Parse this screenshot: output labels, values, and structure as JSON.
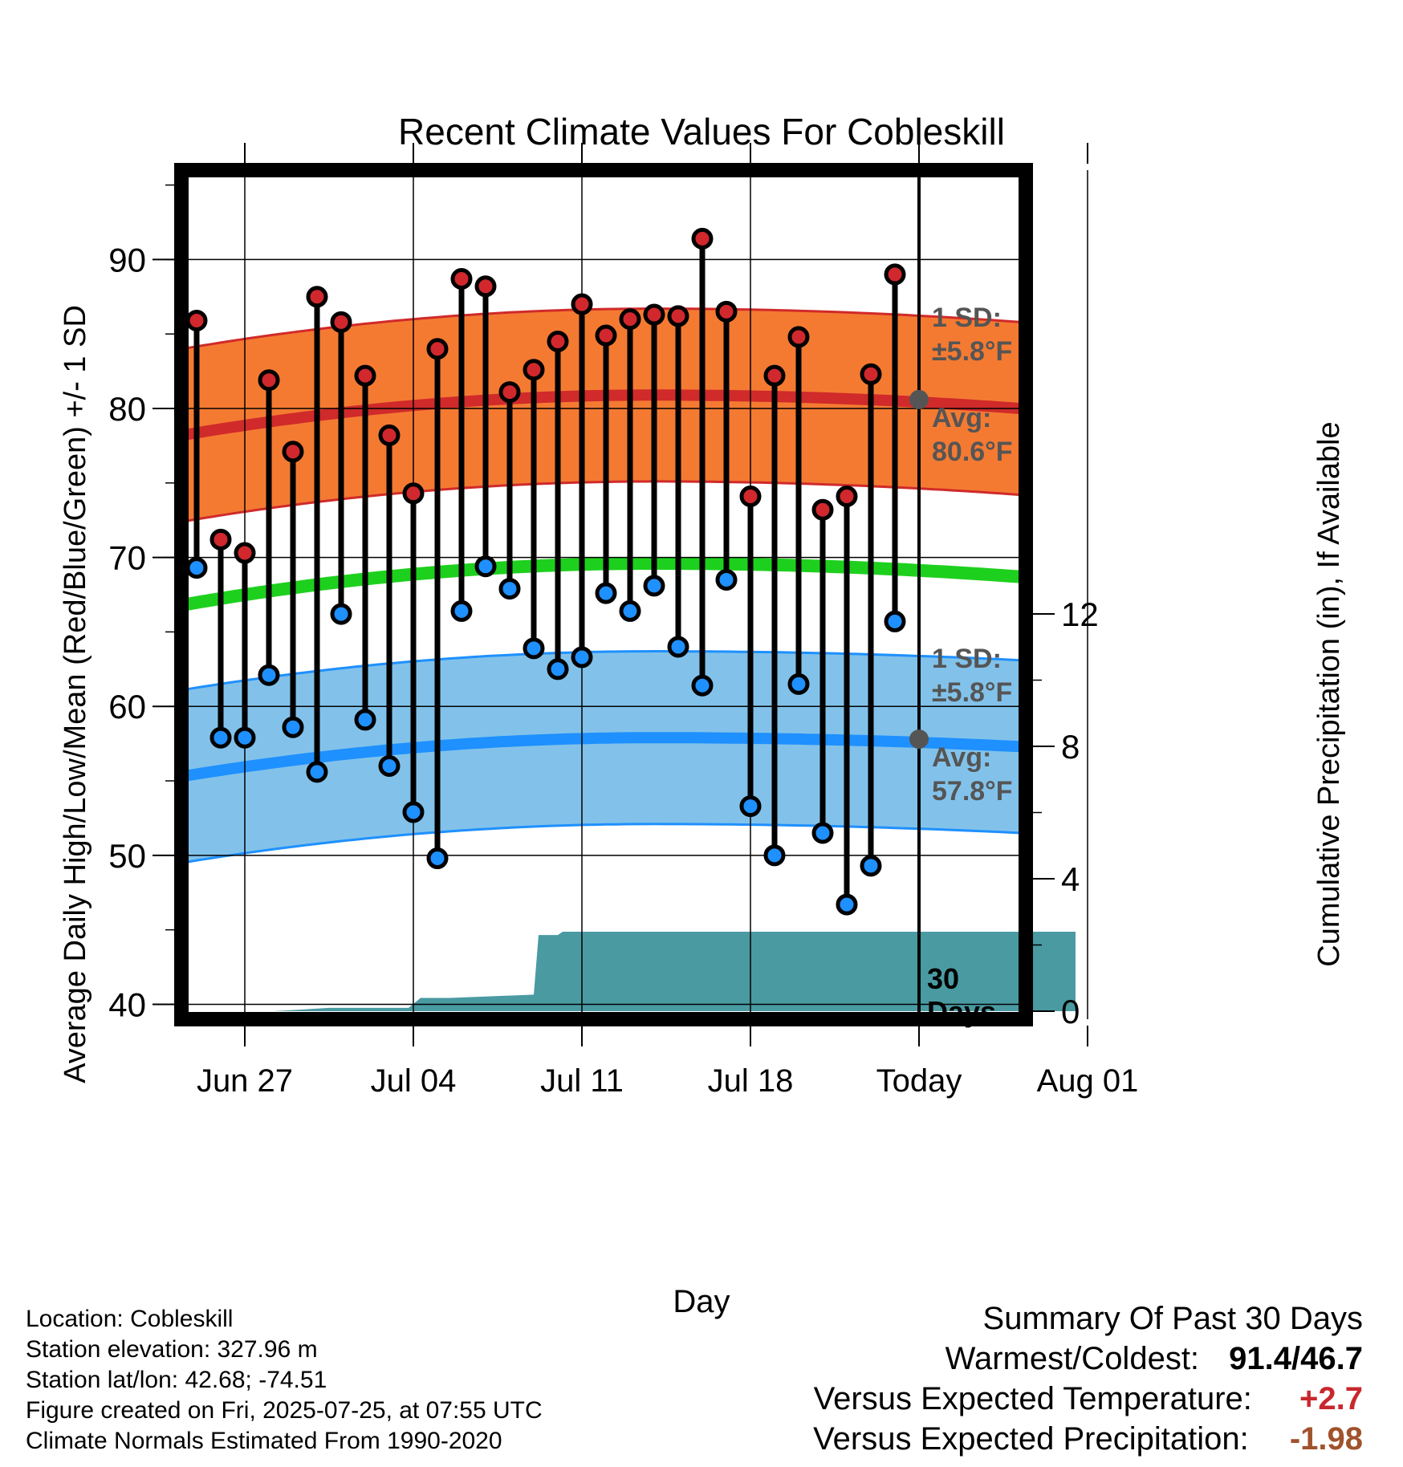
{
  "chart_data": {
    "type": "line",
    "title": "Recent Climate Values For Cobleskill",
    "xlabel": "Day",
    "ylabel": "Average Daily High/Low/Mean (Red/Blue/Green) +/- 1 SD",
    "y2label": "Cumulative Precipitation (in), If Available",
    "ylim": [
      39,
      96
    ],
    "y2lim": [
      0,
      18
    ],
    "x_ticks": [
      "Jun 27",
      "Jul 04",
      "Jul 11",
      "Jul 18",
      "Today",
      "Aug 01"
    ],
    "y_ticks": [
      40,
      50,
      60,
      70,
      80,
      90
    ],
    "y2_ticks": [
      0,
      4,
      8,
      12
    ],
    "grid": true,
    "dates": [
      "Jun 25",
      "Jun 26",
      "Jun 27",
      "Jun 28",
      "Jun 29",
      "Jun 30",
      "Jul 01",
      "Jul 02",
      "Jul 03",
      "Jul 04",
      "Jul 05",
      "Jul 06",
      "Jul 07",
      "Jul 08",
      "Jul 09",
      "Jul 10",
      "Jul 11",
      "Jul 12",
      "Jul 13",
      "Jul 14",
      "Jul 15",
      "Jul 16",
      "Jul 17",
      "Jul 18",
      "Jul 19",
      "Jul 20",
      "Jul 21",
      "Jul 22",
      "Jul 23",
      "Jul 24"
    ],
    "series": [
      {
        "name": "High",
        "values": [
          85.9,
          71.2,
          70.3,
          81.9,
          77.1,
          87.5,
          85.8,
          82.2,
          78.2,
          74.3,
          84.0,
          88.7,
          88.2,
          81.1,
          82.6,
          84.5,
          87.0,
          84.9,
          86.0,
          86.3,
          86.2,
          91.4,
          86.5,
          74.1,
          82.2,
          84.8,
          73.2,
          74.1,
          82.3,
          89.0
        ]
      },
      {
        "name": "Low",
        "values": [
          69.3,
          57.9,
          57.9,
          62.1,
          58.6,
          55.6,
          66.2,
          59.1,
          56.0,
          52.9,
          49.8,
          66.4,
          69.4,
          67.9,
          63.9,
          62.5,
          63.3,
          67.6,
          66.4,
          68.1,
          64.0,
          61.4,
          68.5,
          53.3,
          50.0,
          61.5,
          51.5,
          46.7,
          49.3,
          65.7
        ]
      }
    ],
    "normal_high": {
      "start": 78.2,
      "peak": 80.9,
      "end": 80.0
    },
    "normal_low": {
      "start": 55.3,
      "peak": 57.9,
      "end": 57.3
    },
    "normal_mean": {
      "start": 66.8,
      "peak": 69.6,
      "end": 68.7
    },
    "sd": 5.8,
    "precip_x": [
      3.2,
      5.5,
      8.8,
      9.3,
      10.5,
      14.0,
      14.2,
      15.0,
      15.2,
      17.0,
      19.0,
      24.0,
      36.5
    ],
    "precip_values": [
      0.0,
      0.1,
      0.1,
      0.4,
      0.4,
      0.5,
      2.3,
      2.3,
      2.4,
      2.4,
      2.4,
      2.4,
      2.4
    ],
    "annotations": {
      "high_sd": "1 SD:",
      "high_sd_val": "±5.8°F",
      "high_avg": "Avg:",
      "high_avg_val": "80.6°F",
      "low_sd": "1 SD:",
      "low_sd_val": "±5.8°F",
      "low_avg": "Avg:",
      "low_avg_val": "57.8°F",
      "days": "30",
      "days_label": "Days"
    },
    "colors": {
      "high_band": "#f47a32",
      "high_line": "#d02a2a",
      "low_band": "#82c2ea",
      "low_line": "#1e90ff",
      "mean_line": "#1ed01e",
      "precip": "#4a9aa2",
      "annotation": "#555555"
    }
  },
  "info": {
    "location": "Location: Cobleskill",
    "elevation": "Station elevation: 327.96 m",
    "latlon": "Station lat/lon: 42.68; -74.51",
    "created": "Figure created on Fri, 2025-07-25, at 07:55 UTC",
    "normals": "Climate Normals Estimated From 1990-2020"
  },
  "summary": {
    "title": "Summary Of Past 30 Days",
    "warm_label": "Warmest/Coldest:",
    "warm_value": "91.4/46.7",
    "temp_label": "Versus Expected Temperature:",
    "temp_value": "+2.7",
    "temp_color": "#c8282d",
    "precip_label": "Versus Expected Precipitation:",
    "precip_value": "-1.98",
    "precip_color": "#a0522d"
  }
}
